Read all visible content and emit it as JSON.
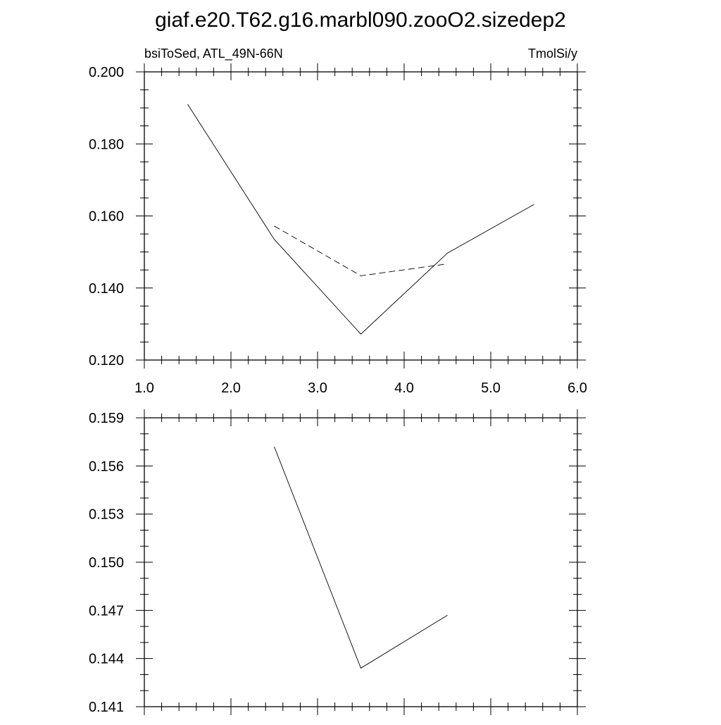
{
  "title": "giaf.e20.T62.g16.marbl090.zooO2.sizedep2",
  "chart_data": [
    {
      "type": "line",
      "left_label": "bsiToSed, ATL_49N-66N",
      "right_label": "TmolSi/y",
      "xlim": [
        1.0,
        6.0
      ],
      "ylim": [
        0.12,
        0.2
      ],
      "x_tick_labels": [
        "1.0",
        "2.0",
        "3.0",
        "4.0",
        "5.0",
        "6.0"
      ],
      "y_tick_labels": [
        "0.120",
        "0.140",
        "0.160",
        "0.180",
        "0.200"
      ],
      "grid": false,
      "series": [
        {
          "style": "solid",
          "x": [
            1.5,
            2.5,
            3.5,
            4.5,
            5.5
          ],
          "y": [
            0.191,
            0.1535,
            0.1272,
            0.1497,
            0.1632
          ]
        },
        {
          "style": "dashed",
          "x": [
            2.5,
            3.5,
            4.5
          ],
          "y": [
            0.1572,
            0.1434,
            0.1467
          ]
        }
      ]
    },
    {
      "type": "line",
      "xlim": [
        1.0,
        6.0
      ],
      "ylim": [
        0.141,
        0.159
      ],
      "y_tick_labels": [
        "0.141",
        "0.144",
        "0.147",
        "0.150",
        "0.153",
        "0.156",
        "0.159"
      ],
      "grid": false,
      "series": [
        {
          "style": "solid",
          "x": [
            2.5,
            3.5,
            4.5
          ],
          "y": [
            0.1572,
            0.1434,
            0.1467
          ]
        }
      ]
    }
  ]
}
